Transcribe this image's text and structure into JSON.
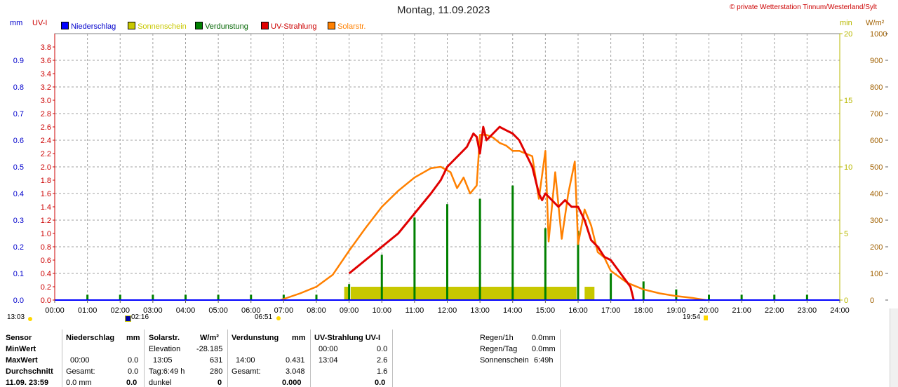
{
  "header": {
    "title": "Montag, 11.09.2023",
    "copyright": "© private Wetterstation Tinnum/Westerland/Sylt",
    "unit_mm": "mm",
    "unit_uv": "UV-I",
    "unit_min": "min",
    "unit_wm2": "W/m²"
  },
  "legend": [
    {
      "label": "Niederschlag",
      "color": "#0000ff"
    },
    {
      "label": "Sonnenschein",
      "color": "#c8c800"
    },
    {
      "label": "Verdunstung",
      "color": "#008000"
    },
    {
      "label": "UV-Strahlung",
      "color": "#e00000"
    },
    {
      "label": "Solarstr.",
      "color": "#ff8000"
    }
  ],
  "colors": {
    "mm_axis": "#0000cc",
    "uv_axis": "#cc0000",
    "min_axis": "#b8b800",
    "wm2_axis": "#a06000",
    "grid": "#a0a0a0"
  },
  "chart_data": {
    "type": "line",
    "x_label_ticks": [
      "00:00",
      "01:00",
      "02:00",
      "03:00",
      "04:00",
      "05:00",
      "06:00",
      "07:00",
      "08:00",
      "09:00",
      "10:00",
      "11:00",
      "12:00",
      "13:00",
      "14:00",
      "15:00",
      "16:00",
      "17:00",
      "18:00",
      "19:00",
      "20:00",
      "21:00",
      "22:00",
      "23:00",
      "24:00"
    ],
    "x_range_hours": [
      0,
      24
    ],
    "axes": {
      "mm": {
        "range": [
          0,
          1.0
        ],
        "ticks": [
          "0.0",
          "0.1",
          "0.2",
          "0.3",
          "0.4",
          "0.5",
          "0.6",
          "0.7",
          "0.8",
          "0.9"
        ]
      },
      "uv": {
        "range": [
          0,
          4.0
        ],
        "ticks": [
          "0.0",
          "0.2",
          "0.4",
          "0.6",
          "0.8",
          "1.0",
          "1.2",
          "1.4",
          "1.6",
          "1.8",
          "2.0",
          "2.2",
          "2.4",
          "2.6",
          "2.8",
          "3.0",
          "3.2",
          "3.4",
          "3.6",
          "3.8"
        ]
      },
      "min": {
        "range": [
          0,
          20
        ],
        "ticks": [
          "0",
          "5",
          "10",
          "15",
          "20"
        ]
      },
      "wm2": {
        "range": [
          0,
          1000
        ],
        "ticks": [
          "0",
          "100",
          "200",
          "300",
          "400",
          "500",
          "600",
          "700",
          "800",
          "900",
          "1000"
        ]
      }
    },
    "grid": true,
    "series": [
      {
        "name": "Solarstr.",
        "axis": "wm2",
        "color": "#ff8000",
        "x": [
          6.9,
          7.5,
          8.0,
          8.5,
          9.0,
          9.5,
          10.0,
          10.5,
          11.0,
          11.5,
          11.8,
          12.1,
          12.3,
          12.5,
          12.7,
          12.9,
          13.0,
          13.2,
          13.4,
          13.6,
          13.8,
          14.0,
          14.2,
          14.4,
          14.6,
          14.8,
          15.0,
          15.1,
          15.3,
          15.5,
          15.7,
          15.9,
          16.0,
          16.2,
          16.4,
          16.6,
          16.8,
          17.0,
          17.5,
          18.0,
          18.5,
          19.0,
          19.5,
          19.9
        ],
        "y": [
          0,
          25,
          50,
          95,
          185,
          270,
          350,
          410,
          460,
          495,
          500,
          480,
          420,
          460,
          400,
          430,
          620,
          620,
          610,
          590,
          580,
          560,
          560,
          550,
          540,
          380,
          560,
          220,
          480,
          230,
          400,
          520,
          210,
          340,
          280,
          180,
          160,
          110,
          65,
          40,
          25,
          15,
          8,
          0
        ]
      },
      {
        "name": "UV-Strahlung",
        "axis": "uv",
        "color": "#e00000",
        "x": [
          9.0,
          9.5,
          10.0,
          10.5,
          11.0,
          11.5,
          11.8,
          12.0,
          12.2,
          12.4,
          12.6,
          12.8,
          12.9,
          13.0,
          13.1,
          13.2,
          13.4,
          13.6,
          13.8,
          14.0,
          14.2,
          14.4,
          14.6,
          14.8,
          14.9,
          15.0,
          15.2,
          15.4,
          15.6,
          15.8,
          16.0,
          16.2,
          16.4,
          16.6,
          16.8,
          17.0,
          17.3,
          17.6,
          17.7
        ],
        "y": [
          0.4,
          0.6,
          0.8,
          1.0,
          1.3,
          1.6,
          1.8,
          2.0,
          2.1,
          2.2,
          2.3,
          2.5,
          2.45,
          2.2,
          2.6,
          2.4,
          2.5,
          2.6,
          2.55,
          2.5,
          2.4,
          2.2,
          2.0,
          1.6,
          1.5,
          1.6,
          1.5,
          1.4,
          1.5,
          1.4,
          1.4,
          1.2,
          0.9,
          0.8,
          0.65,
          0.6,
          0.4,
          0.2,
          0.0
        ]
      },
      {
        "name": "Sonnenschein",
        "axis": "min",
        "color": "#c8c800",
        "type": "bar",
        "segments": [
          [
            8.85,
            9.0
          ],
          [
            9.05,
            15.95
          ],
          [
            16.2,
            16.5
          ]
        ],
        "value": 1
      }
    ],
    "verdunstung_bars": {
      "axis": "mm",
      "color": "#008000",
      "x": [
        1,
        2,
        3,
        4,
        5,
        6,
        7,
        8,
        9,
        10,
        11,
        12,
        13,
        14,
        15,
        16,
        17,
        18,
        19,
        20,
        21,
        22,
        23
      ],
      "values": [
        0.02,
        0.02,
        0.02,
        0.02,
        0.02,
        0.02,
        0.02,
        0.02,
        0.06,
        0.17,
        0.31,
        0.36,
        0.38,
        0.43,
        0.27,
        0.26,
        0.1,
        0.07,
        0.04,
        0.02,
        0.02,
        0.02,
        0.02
      ]
    }
  },
  "below_axis": {
    "left_time": "13:03",
    "moon_time": "02:16",
    "sunrise_time": "06:51",
    "sunset_time": "19:54"
  },
  "table": {
    "row_labels": [
      "Sensor",
      "MinWert",
      "MaxWert",
      "Durchschnitt",
      "11.09.  23:59"
    ],
    "niederschlag": {
      "header": "Niederschlag",
      "unit": "mm",
      "rows": [
        [
          "",
          ""
        ],
        [
          "00:00",
          "0.0"
        ],
        [
          "Gesamt:",
          "0.0"
        ],
        [
          "0.0 mm",
          "0.0"
        ]
      ]
    },
    "solar": {
      "header": "Solarstr.",
      "unit": "W/m²",
      "rows": [
        [
          "Elevation",
          "-28.185"
        ],
        [
          "13:05",
          "631"
        ],
        [
          "Tag:6:49 h",
          "280"
        ],
        [
          "dunkel",
          "0"
        ]
      ]
    },
    "verdunstung": {
      "header": "Verdunstung",
      "unit": "mm",
      "rows": [
        [
          "",
          ""
        ],
        [
          "14:00",
          "0.431"
        ],
        [
          "Gesamt:",
          "3.048"
        ],
        [
          "",
          "0.000"
        ]
      ]
    },
    "uv": {
      "header": "UV-Strahlung UV-I",
      "rows": [
        [
          "00:00",
          "0.0"
        ],
        [
          "13:04",
          "2.6"
        ],
        [
          "",
          "1.6"
        ],
        [
          "",
          "0.0"
        ]
      ]
    },
    "summary": [
      {
        "label": "Regen/1h",
        "value": "0.0mm"
      },
      {
        "label": "Regen/Tag",
        "value": "0.0mm"
      },
      {
        "label": "Sonnenschein",
        "value": "6:49h"
      }
    ]
  }
}
